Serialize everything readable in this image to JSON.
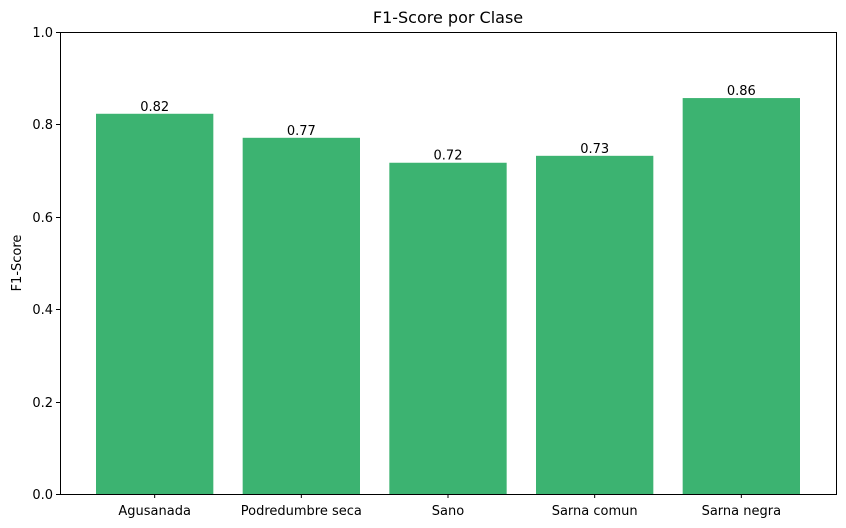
{
  "chart_data": {
    "type": "bar",
    "title": "F1-Score por Clase",
    "xlabel": "",
    "ylabel": "F1-Score",
    "categories": [
      "Agusanada",
      "Podredumbre seca",
      "Sano",
      "Sarna comun",
      "Sarna negra"
    ],
    "values": [
      0.823,
      0.771,
      0.717,
      0.732,
      0.857
    ],
    "value_labels": [
      "0.82",
      "0.77",
      "0.72",
      "0.73",
      "0.86"
    ],
    "ylim": [
      0,
      1.0
    ],
    "yticks": [
      0.0,
      0.2,
      0.4,
      0.6,
      0.8,
      1.0
    ],
    "ytick_labels": [
      "0.0",
      "0.2",
      "0.4",
      "0.6",
      "0.8",
      "1.0"
    ],
    "bar_color": "#3cb371",
    "grid": false,
    "legend": "none"
  }
}
